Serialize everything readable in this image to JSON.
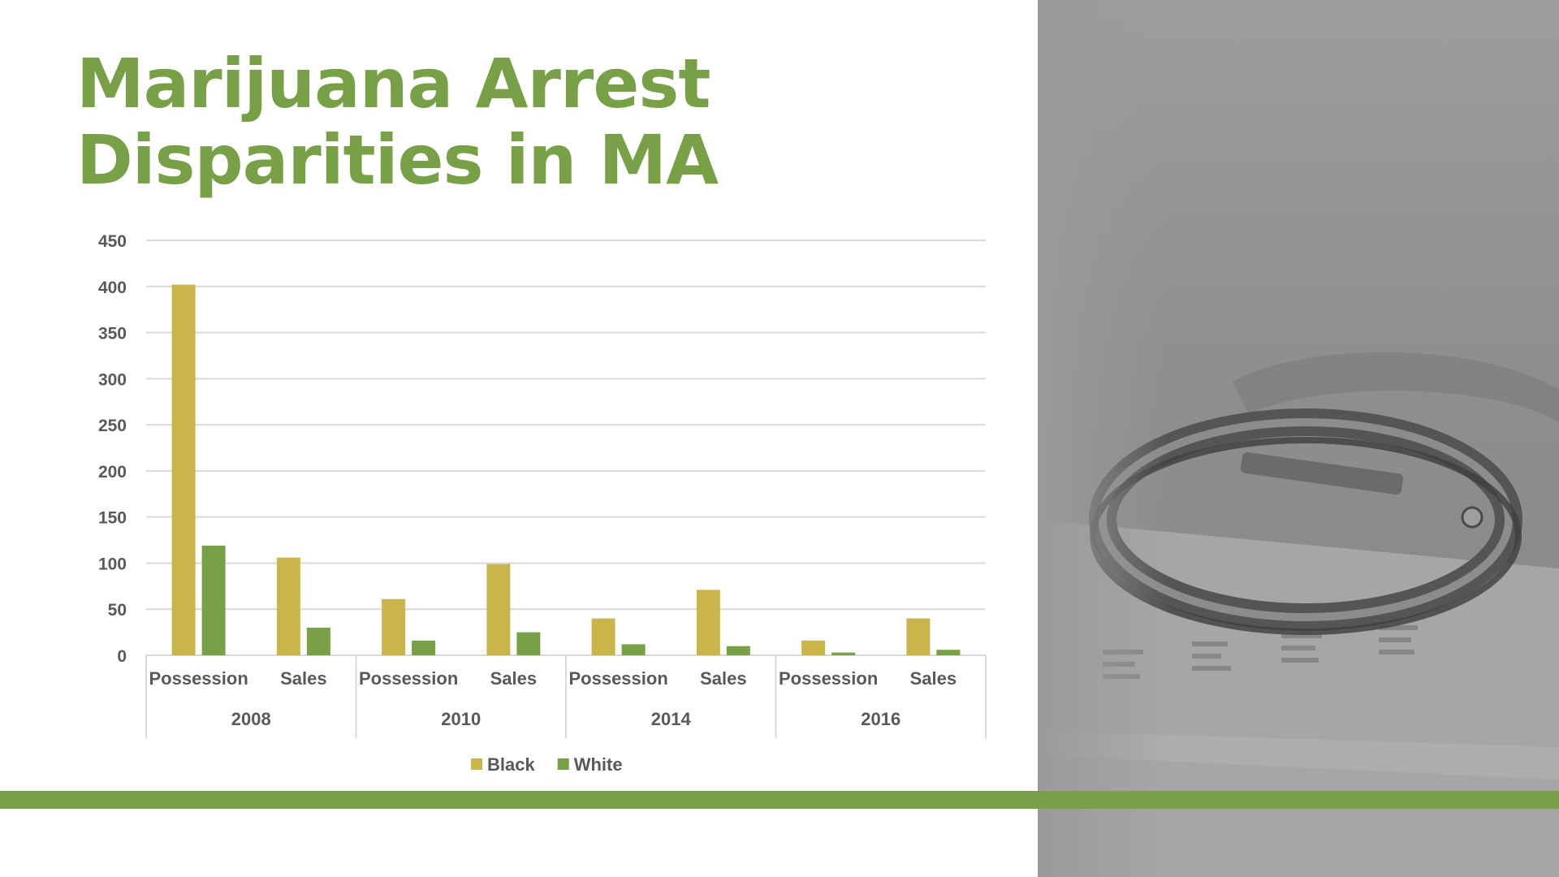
{
  "title_lines": [
    "Marijuana Arrest",
    "Disparities in MA"
  ],
  "colors": {
    "accent": "#78a047",
    "black_series": "#c9b54a",
    "white_series": "#78a047"
  },
  "chart_data": {
    "type": "bar",
    "title": "",
    "ylim": [
      0,
      450
    ],
    "y_ticks": [
      0,
      50,
      100,
      150,
      200,
      250,
      300,
      350,
      400,
      450
    ],
    "grid": true,
    "legend_position": "bottom",
    "groups": [
      {
        "label": "2008",
        "categories": [
          "Possession",
          "Sales"
        ]
      },
      {
        "label": "2010",
        "categories": [
          "Possession",
          "Sales"
        ]
      },
      {
        "label": "2014",
        "categories": [
          "Possession",
          "Sales"
        ]
      },
      {
        "label": "2016",
        "categories": [
          "Possession",
          "Sales"
        ]
      }
    ],
    "series": [
      {
        "name": "Black",
        "color": "#c9b54a",
        "values": [
          402,
          106,
          61,
          99,
          40,
          71,
          16,
          40
        ]
      },
      {
        "name": "White",
        "color": "#78a047",
        "values": [
          119,
          30,
          16,
          25,
          12,
          10,
          3,
          6
        ]
      }
    ]
  },
  "image": {
    "subject": "handcuffs-on-financial-report-photo"
  }
}
